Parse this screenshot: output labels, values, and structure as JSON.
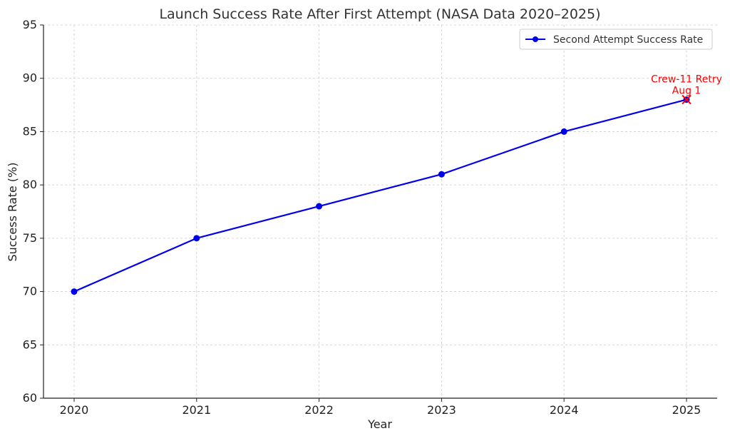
{
  "chart_data": {
    "type": "line",
    "title": "Launch Success Rate After First Attempt (NASA Data 2020–2025)",
    "xlabel": "Year",
    "ylabel": "Success Rate (%)",
    "x": [
      "2020",
      "2021",
      "2022",
      "2023",
      "2024",
      "2025"
    ],
    "series": [
      {
        "name": "Second Attempt Success Rate",
        "values": [
          70,
          75,
          78,
          81,
          85,
          88
        ],
        "color": "#0000ee",
        "marker": "circle"
      }
    ],
    "ylim": [
      60,
      95
    ],
    "yticks": [
      "60",
      "65",
      "70",
      "75",
      "80",
      "85",
      "90",
      "95"
    ],
    "grid": true,
    "gridstyle": "dashed",
    "legend": "top-right",
    "annotations": [
      {
        "x": "2025",
        "y": 88,
        "lines": [
          "Crew-11 Retry",
          "Aug 1"
        ],
        "marker": "x",
        "color": "#ff0000"
      }
    ]
  }
}
